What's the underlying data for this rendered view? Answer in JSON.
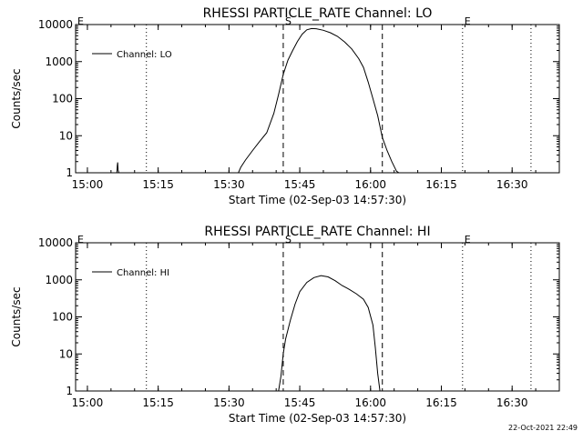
{
  "footer_timestamp": "22-Oct-2021 22:49",
  "chart_data": [
    {
      "type": "line",
      "title": "RHESSI PARTICLE_RATE Channel: LO",
      "xlabel": "Start Time (02-Sep-03 14:57:30)",
      "ylabel": "Counts/sec",
      "y_scale": "log",
      "ylim": [
        1,
        10000
      ],
      "y_ticks": [
        {
          "value": 1,
          "label": "1"
        },
        {
          "value": 10,
          "label": "10"
        },
        {
          "value": 100,
          "label": "100"
        },
        {
          "value": 1000,
          "label": "1000"
        },
        {
          "value": 10000,
          "label": "10000"
        }
      ],
      "xlim": [
        "14:57:30",
        "16:40:00"
      ],
      "x_ticks": [
        "15:00",
        "15:15",
        "15:30",
        "15:45",
        "16:00",
        "16:15",
        "16:30"
      ],
      "legend": {
        "placement": "top-left",
        "entries": [
          "Channel: LO"
        ]
      },
      "markers": [
        {
          "label": "E",
          "time": "14:57:30",
          "style": "dotted"
        },
        {
          "label": "",
          "time": "15:12:30",
          "style": "dotted"
        },
        {
          "label": "S",
          "time": "15:41:30",
          "style": "dashed"
        },
        {
          "label": "",
          "time": "16:02:30",
          "style": "dashed"
        },
        {
          "label": "E",
          "time": "16:19:30",
          "style": "dotted"
        },
        {
          "label": "",
          "time": "16:34:00",
          "style": "dotted"
        }
      ],
      "series": [
        {
          "name": "Channel: LO",
          "points": [
            [
              "15:06:15",
              1
            ],
            [
              "15:06:20",
              1.6
            ],
            [
              "15:06:25",
              1.9
            ],
            [
              "15:06:30",
              1.2
            ],
            [
              "15:06:40",
              1
            ],
            [
              "15:32:00",
              1
            ],
            [
              "15:32:30",
              1.4
            ],
            [
              "15:33:30",
              2.2
            ],
            [
              "15:35:00",
              4
            ],
            [
              "15:36:30",
              7
            ],
            [
              "15:38:00",
              12
            ],
            [
              "15:39:30",
              40
            ],
            [
              "15:40:30",
              130
            ],
            [
              "15:41:30",
              450
            ],
            [
              "15:42:30",
              1100
            ],
            [
              "15:43:30",
              2000
            ],
            [
              "15:44:30",
              3500
            ],
            [
              "15:45:30",
              5500
            ],
            [
              "15:46:30",
              7200
            ],
            [
              "15:47:30",
              7800
            ],
            [
              "15:48:30",
              7700
            ],
            [
              "15:50:00",
              7000
            ],
            [
              "15:51:30",
              6000
            ],
            [
              "15:53:00",
              4800
            ],
            [
              "15:54:30",
              3400
            ],
            [
              "15:56:00",
              2200
            ],
            [
              "15:57:30",
              1200
            ],
            [
              "15:58:30",
              700
            ],
            [
              "15:59:30",
              280
            ],
            [
              "16:00:30",
              100
            ],
            [
              "16:01:30",
              35
            ],
            [
              "16:02:30",
              9
            ],
            [
              "16:03:30",
              4
            ],
            [
              "16:04:30",
              2
            ],
            [
              "16:05:30",
              1.1
            ],
            [
              "16:06:00",
              1
            ]
          ]
        }
      ]
    },
    {
      "type": "line",
      "title": "RHESSI PARTICLE_RATE Channel: HI",
      "xlabel": "Start Time (02-Sep-03 14:57:30)",
      "ylabel": "Counts/sec",
      "y_scale": "log",
      "ylim": [
        1,
        10000
      ],
      "y_ticks": [
        {
          "value": 1,
          "label": "1"
        },
        {
          "value": 10,
          "label": "10"
        },
        {
          "value": 100,
          "label": "100"
        },
        {
          "value": 1000,
          "label": "1000"
        },
        {
          "value": 10000,
          "label": "10000"
        }
      ],
      "xlim": [
        "14:57:30",
        "16:40:00"
      ],
      "x_ticks": [
        "15:00",
        "15:15",
        "15:30",
        "15:45",
        "16:00",
        "16:15",
        "16:30"
      ],
      "legend": {
        "placement": "top-left",
        "entries": [
          "Channel: HI"
        ]
      },
      "markers": [
        {
          "label": "E",
          "time": "14:57:30",
          "style": "dotted"
        },
        {
          "label": "",
          "time": "15:12:30",
          "style": "dotted"
        },
        {
          "label": "S",
          "time": "15:41:30",
          "style": "dashed"
        },
        {
          "label": "",
          "time": "16:02:30",
          "style": "dashed"
        },
        {
          "label": "E",
          "time": "16:19:30",
          "style": "dotted"
        },
        {
          "label": "",
          "time": "16:34:00",
          "style": "dotted"
        }
      ],
      "series": [
        {
          "name": "Channel: HI",
          "points": [
            [
              "15:40:30",
              1
            ],
            [
              "15:41:00",
              2.5
            ],
            [
              "15:41:30",
              10
            ],
            [
              "15:42:00",
              25
            ],
            [
              "15:43:00",
              80
            ],
            [
              "15:44:00",
              220
            ],
            [
              "15:45:00",
              480
            ],
            [
              "15:46:30",
              850
            ],
            [
              "15:48:00",
              1150
            ],
            [
              "15:49:30",
              1300
            ],
            [
              "15:51:00",
              1200
            ],
            [
              "15:52:30",
              950
            ],
            [
              "15:54:00",
              700
            ],
            [
              "15:55:30",
              550
            ],
            [
              "15:57:00",
              420
            ],
            [
              "15:58:30",
              300
            ],
            [
              "15:59:30",
              180
            ],
            [
              "16:00:30",
              60
            ],
            [
              "16:01:00",
              15
            ],
            [
              "16:01:30",
              3
            ],
            [
              "16:02:00",
              1
            ]
          ]
        }
      ]
    }
  ]
}
